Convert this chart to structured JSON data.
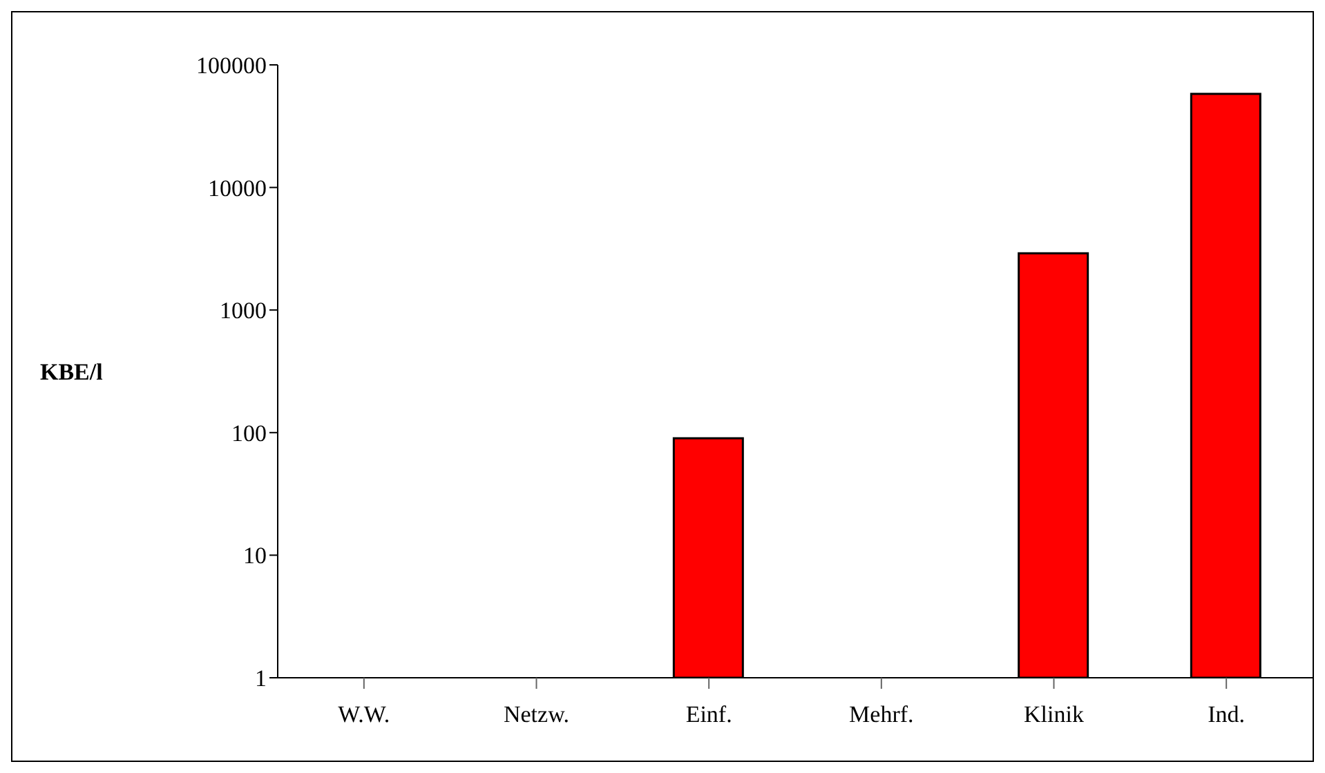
{
  "chart_data": {
    "type": "bar",
    "ylabel": "KBE/l",
    "categories": [
      "W.W.",
      "Netzw.",
      "Einf.",
      "Mehrf.",
      "Klinik",
      "Ind."
    ],
    "values": [
      null,
      null,
      90,
      null,
      2900,
      58000
    ],
    "color": "#ff0000",
    "log": true,
    "ylim": [
      1,
      100000
    ],
    "yticks": [
      1,
      10,
      100,
      1000,
      10000,
      100000
    ],
    "grid": false
  }
}
